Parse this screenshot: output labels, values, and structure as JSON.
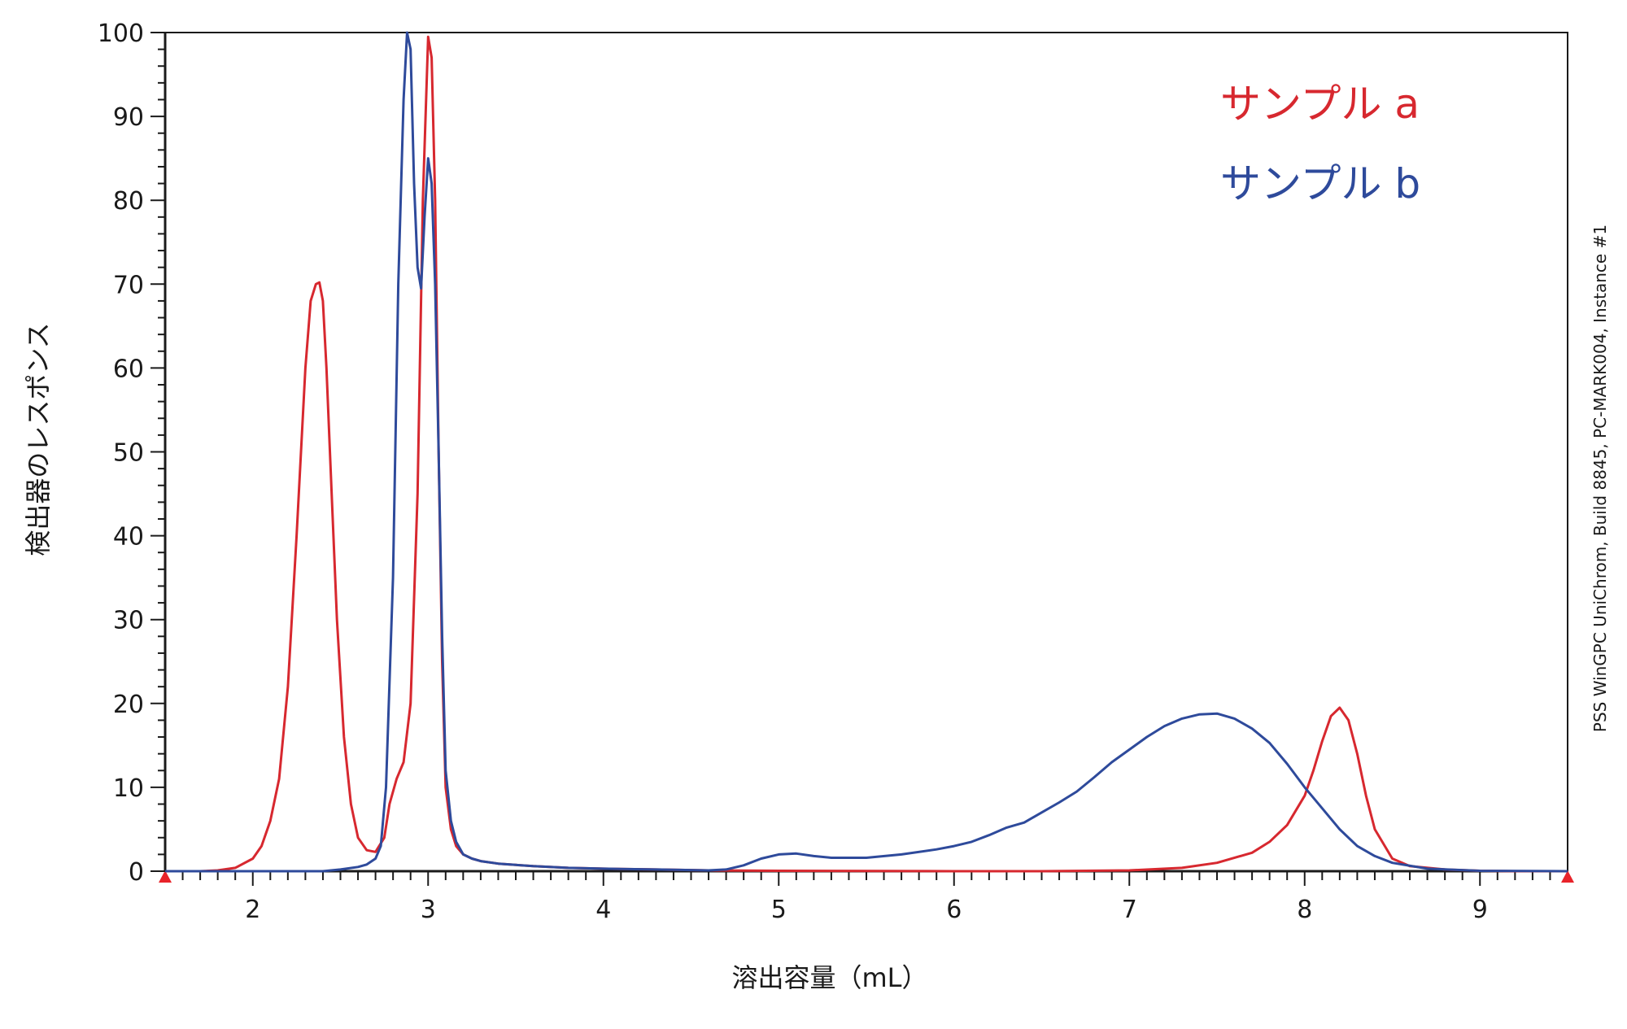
{
  "chart_data": {
    "type": "line",
    "xlabel": "溶出容量（mL）",
    "ylabel": "検出器のレスポンス",
    "xlim": [
      1.5,
      9.5
    ],
    "ylim": [
      0,
      100
    ],
    "x_ticks": [
      2,
      3,
      4,
      5,
      6,
      7,
      8,
      9
    ],
    "y_ticks": [
      0,
      10,
      20,
      30,
      40,
      50,
      60,
      70,
      80,
      90,
      100
    ],
    "grid": false,
    "legend": "top-right",
    "watermark": "PSS WinGPC UniChrom, Build 8845, PC-MARK004, Instance #1",
    "series": [
      {
        "name": "サンプル a",
        "color": "#d7282f",
        "x": [
          1.5,
          1.7,
          1.8,
          1.9,
          2.0,
          2.05,
          2.1,
          2.15,
          2.2,
          2.25,
          2.3,
          2.33,
          2.36,
          2.38,
          2.4,
          2.42,
          2.45,
          2.48,
          2.52,
          2.56,
          2.6,
          2.65,
          2.7,
          2.75,
          2.78,
          2.82,
          2.86,
          2.9,
          2.94,
          2.97,
          3.0,
          3.02,
          3.04,
          3.06,
          3.08,
          3.1,
          3.13,
          3.16,
          3.2,
          3.25,
          3.3,
          3.4,
          3.6,
          3.8,
          4.0,
          4.3,
          4.6,
          5.0,
          6.0,
          6.5,
          7.0,
          7.3,
          7.5,
          7.7,
          7.8,
          7.9,
          8.0,
          8.05,
          8.1,
          8.15,
          8.2,
          8.25,
          8.3,
          8.35,
          8.4,
          8.5,
          8.6,
          8.8,
          9.0,
          9.2,
          9.5
        ],
        "y": [
          0,
          0,
          0.1,
          0.4,
          1.5,
          3,
          6,
          11,
          22,
          40,
          60,
          68,
          70,
          70.2,
          68,
          60,
          45,
          30,
          16,
          8,
          4,
          2.5,
          2.3,
          4,
          8,
          11,
          13,
          20,
          45,
          80,
          99.5,
          97,
          80,
          50,
          25,
          10,
          5,
          3,
          2,
          1.5,
          1.2,
          0.9,
          0.6,
          0.4,
          0.3,
          0.2,
          0.1,
          0.05,
          0,
          0,
          0.1,
          0.4,
          1,
          2.2,
          3.5,
          5.5,
          9,
          12,
          15.5,
          18.5,
          19.5,
          18,
          14,
          9,
          5,
          1.5,
          0.6,
          0.2,
          0.05,
          0,
          0
        ]
      },
      {
        "name": "サンプル b",
        "color": "#2e4a9b",
        "x": [
          1.5,
          2.0,
          2.4,
          2.5,
          2.6,
          2.65,
          2.7,
          2.73,
          2.76,
          2.8,
          2.83,
          2.86,
          2.88,
          2.9,
          2.92,
          2.94,
          2.96,
          2.98,
          3.0,
          3.02,
          3.04,
          3.06,
          3.08,
          3.1,
          3.13,
          3.16,
          3.2,
          3.25,
          3.3,
          3.4,
          3.6,
          3.8,
          4.0,
          4.3,
          4.6,
          4.7,
          4.8,
          4.9,
          5.0,
          5.1,
          5.2,
          5.3,
          5.5,
          5.7,
          5.9,
          6.0,
          6.1,
          6.2,
          6.3,
          6.4,
          6.5,
          6.6,
          6.7,
          6.8,
          6.9,
          7.0,
          7.1,
          7.2,
          7.3,
          7.4,
          7.5,
          7.6,
          7.7,
          7.8,
          7.9,
          8.0,
          8.1,
          8.2,
          8.3,
          8.4,
          8.5,
          8.7,
          9.0,
          9.5
        ],
        "y": [
          0,
          0,
          0,
          0.2,
          0.5,
          0.8,
          1.5,
          3,
          10,
          35,
          70,
          92,
          100,
          98,
          82,
          72,
          69.5,
          78,
          85,
          82,
          70,
          50,
          28,
          12,
          6,
          3.5,
          2,
          1.5,
          1.2,
          0.9,
          0.6,
          0.4,
          0.3,
          0.2,
          0.1,
          0.2,
          0.7,
          1.5,
          2,
          2.1,
          1.8,
          1.6,
          1.6,
          2.0,
          2.6,
          3.0,
          3.5,
          4.3,
          5.2,
          5.8,
          7.0,
          8.2,
          9.5,
          11.2,
          13,
          14.5,
          16,
          17.3,
          18.2,
          18.7,
          18.8,
          18.2,
          17,
          15.3,
          12.8,
          10,
          7.5,
          5,
          3,
          1.8,
          1.0,
          0.3,
          0.05,
          0
        ]
      }
    ]
  }
}
